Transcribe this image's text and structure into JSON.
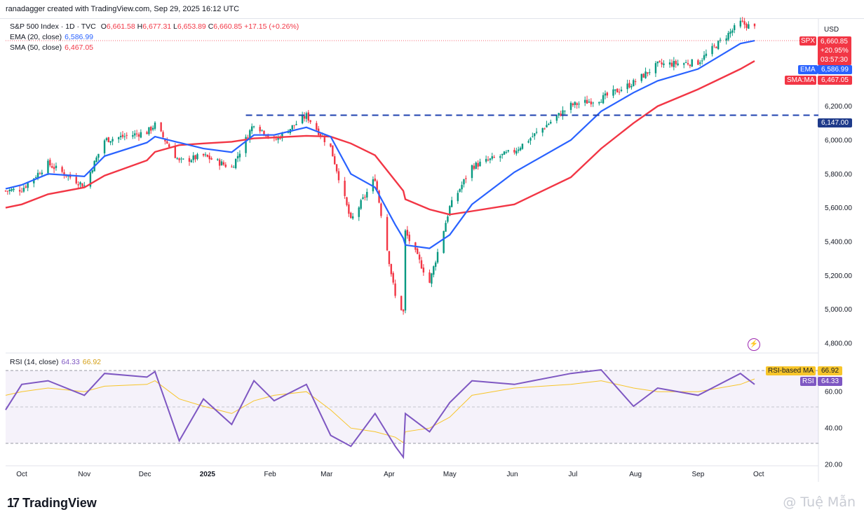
{
  "header": {
    "credit": "ranadagger created with TradingView.com, Sep 29, 2025 16:12 UTC"
  },
  "legend": {
    "symbol_line": "S&P 500 Index · 1D · TVC",
    "ohlc": {
      "o_label": "O",
      "o": "6,661.58",
      "h_label": "H",
      "h": "6,677.31",
      "l_label": "L",
      "l": "6,653.89",
      "c_label": "C",
      "c": "6,660.85",
      "change": "+17.15 (+0.26%)"
    },
    "ema_label": "EMA (20, close)",
    "ema_value": "6,586.99",
    "sma_label": "SMA (50, close)",
    "sma_value": "6,467.05",
    "rsi_label": "RSI (14, close)",
    "rsi_value": "64.33",
    "rsi_ma_value": "66.92"
  },
  "price_axis": {
    "currency": "USD",
    "ticks": [
      "6,200.00",
      "6,000.00",
      "5,800.00",
      "5,600.00",
      "5,400.00",
      "5,200.00",
      "5,000.00",
      "4,800.00"
    ]
  },
  "tags": {
    "spx_label": "SPX",
    "spx_price": "6,660.85",
    "spx_change": "+20.95%",
    "spx_timer": "03:57:30",
    "ema_label": "EMA",
    "ema_price": "6,586.99",
    "sma_label": "SMA:MA",
    "sma_price": "6,467.05",
    "level_price": "6,147.00",
    "rsi_ma_label": "RSI-based MA",
    "rsi_ma_val": "66.92",
    "rsi_label": "RSI",
    "rsi_val": "64.33"
  },
  "rsi_axis": {
    "ticks": [
      "60.00",
      "40.00",
      "20.00"
    ]
  },
  "time_axis": [
    "Oct",
    "Nov",
    "Dec",
    "2025",
    "Feb",
    "Mar",
    "Apr",
    "May",
    "Jun",
    "Jul",
    "Aug",
    "Sep",
    "Oct"
  ],
  "colors": {
    "up": "#089981",
    "down": "#f23645",
    "ema": "#2962ff",
    "sma": "#f23645",
    "rsi": "#7e57c2",
    "rsi_ma": "#f7c52a",
    "level": "#1e40af"
  },
  "footer": {
    "brand": "TradingView",
    "watermark": "@ Tuệ Mẫn"
  },
  "chart_data": {
    "type": "candlestick",
    "symbol": "S&P 500 Index",
    "interval": "1D",
    "ylim": [
      4750,
      6720
    ],
    "horizontal_level": 6147,
    "x_dates": [
      "2024-09-23",
      "2024-10-01",
      "2024-10-14",
      "2024-11-01",
      "2024-11-11",
      "2024-12-02",
      "2024-12-06",
      "2024-12-18",
      "2024-12-30",
      "2025-01-13",
      "2025-01-24",
      "2025-02-03",
      "2025-02-19",
      "2025-03-03",
      "2025-03-13",
      "2025-03-25",
      "2025-04-04",
      "2025-04-08",
      "2025-04-09",
      "2025-04-21",
      "2025-05-01",
      "2025-05-12",
      "2025-06-02",
      "2025-06-30",
      "2025-07-15",
      "2025-07-31",
      "2025-08-12",
      "2025-09-01",
      "2025-09-22",
      "2025-09-29"
    ],
    "close": [
      5700,
      5710,
      5860,
      5730,
      6000,
      6047,
      6090,
      5872,
      5907,
      5836,
      6101,
      5995,
      6144,
      5955,
      5521,
      5776,
      5074,
      4982,
      5457,
      5158,
      5604,
      5844,
      5935,
      6205,
      6244,
      6339,
      6445,
      6460,
      6693,
      6661
    ],
    "ema20": [
      5712,
      5735,
      5800,
      5785,
      5905,
      5985,
      6020,
      5985,
      5950,
      5928,
      6030,
      6030,
      6075,
      6020,
      5800,
      5720,
      5500,
      5420,
      5380,
      5360,
      5440,
      5620,
      5810,
      6000,
      6170,
      6280,
      6350,
      6420,
      6570,
      6587
    ],
    "sma50": [
      5600,
      5620,
      5680,
      5720,
      5790,
      5880,
      5930,
      5970,
      5980,
      5990,
      6010,
      6015,
      6025,
      6020,
      5980,
      5910,
      5760,
      5700,
      5650,
      5590,
      5560,
      5580,
      5620,
      5780,
      5950,
      6100,
      6200,
      6300,
      6420,
      6467
    ],
    "rsi": [
      50,
      64,
      66,
      58,
      70,
      68,
      71,
      33,
      56,
      42,
      66,
      55,
      64,
      36,
      30,
      48,
      30,
      24,
      48,
      38,
      54,
      66,
      64,
      70,
      72,
      52,
      62,
      58,
      70,
      64
    ],
    "rsi_ma": [
      58,
      60,
      62,
      60,
      63,
      64,
      66,
      56,
      52,
      48,
      55,
      58,
      60,
      50,
      40,
      38,
      35,
      32,
      38,
      40,
      46,
      58,
      62,
      64,
      66,
      62,
      60,
      60,
      64,
      67
    ]
  }
}
